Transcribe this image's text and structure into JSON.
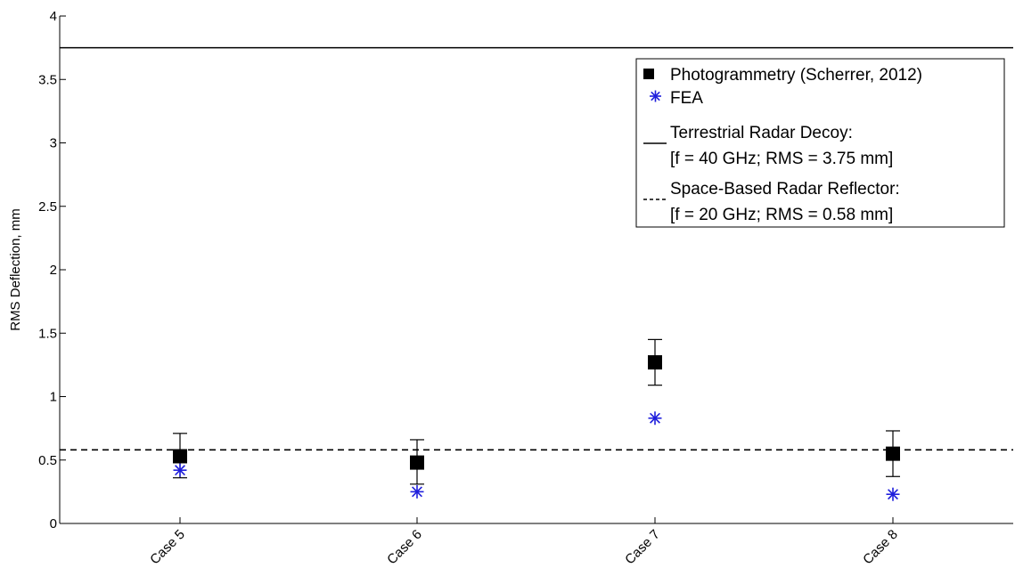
{
  "chart_data": {
    "type": "scatter",
    "ylabel": "RMS Deflection, mm",
    "ylim": [
      0,
      4
    ],
    "yticks": [
      0,
      0.5,
      1,
      1.5,
      2,
      2.5,
      3,
      3.5,
      4
    ],
    "ytick_labels": [
      "0",
      "0.5",
      "1",
      "1.5",
      "2",
      "2.5",
      "3",
      "3.5",
      "4"
    ],
    "categories": [
      "Case 5",
      "Case 6",
      "Case 7",
      "Case 8"
    ],
    "series": [
      {
        "name": "Photogrammetry (Scherrer, 2012)",
        "marker": "square",
        "color": "#000000",
        "values": [
          0.53,
          0.48,
          1.27,
          0.55
        ],
        "error_low": [
          0.36,
          0.31,
          1.09,
          0.37
        ],
        "error_high": [
          0.71,
          0.66,
          1.45,
          0.73
        ]
      },
      {
        "name": "FEA",
        "marker": "asterisk",
        "color": "#1f1fdc",
        "values": [
          0.42,
          0.25,
          0.83,
          0.23
        ]
      }
    ],
    "reference_lines": [
      {
        "name": "Terrestrial Radar Decoy:",
        "detail": "[f = 40 GHz; RMS = 3.75 mm]",
        "value": 3.75,
        "style": "solid",
        "color": "#000000"
      },
      {
        "name": "Space-Based Radar Reflector:",
        "detail": "[f = 20 GHz; RMS = 0.58 mm]",
        "value": 0.58,
        "style": "dashed",
        "color": "#000000"
      }
    ],
    "legend_position": "top-right",
    "grid": false
  }
}
